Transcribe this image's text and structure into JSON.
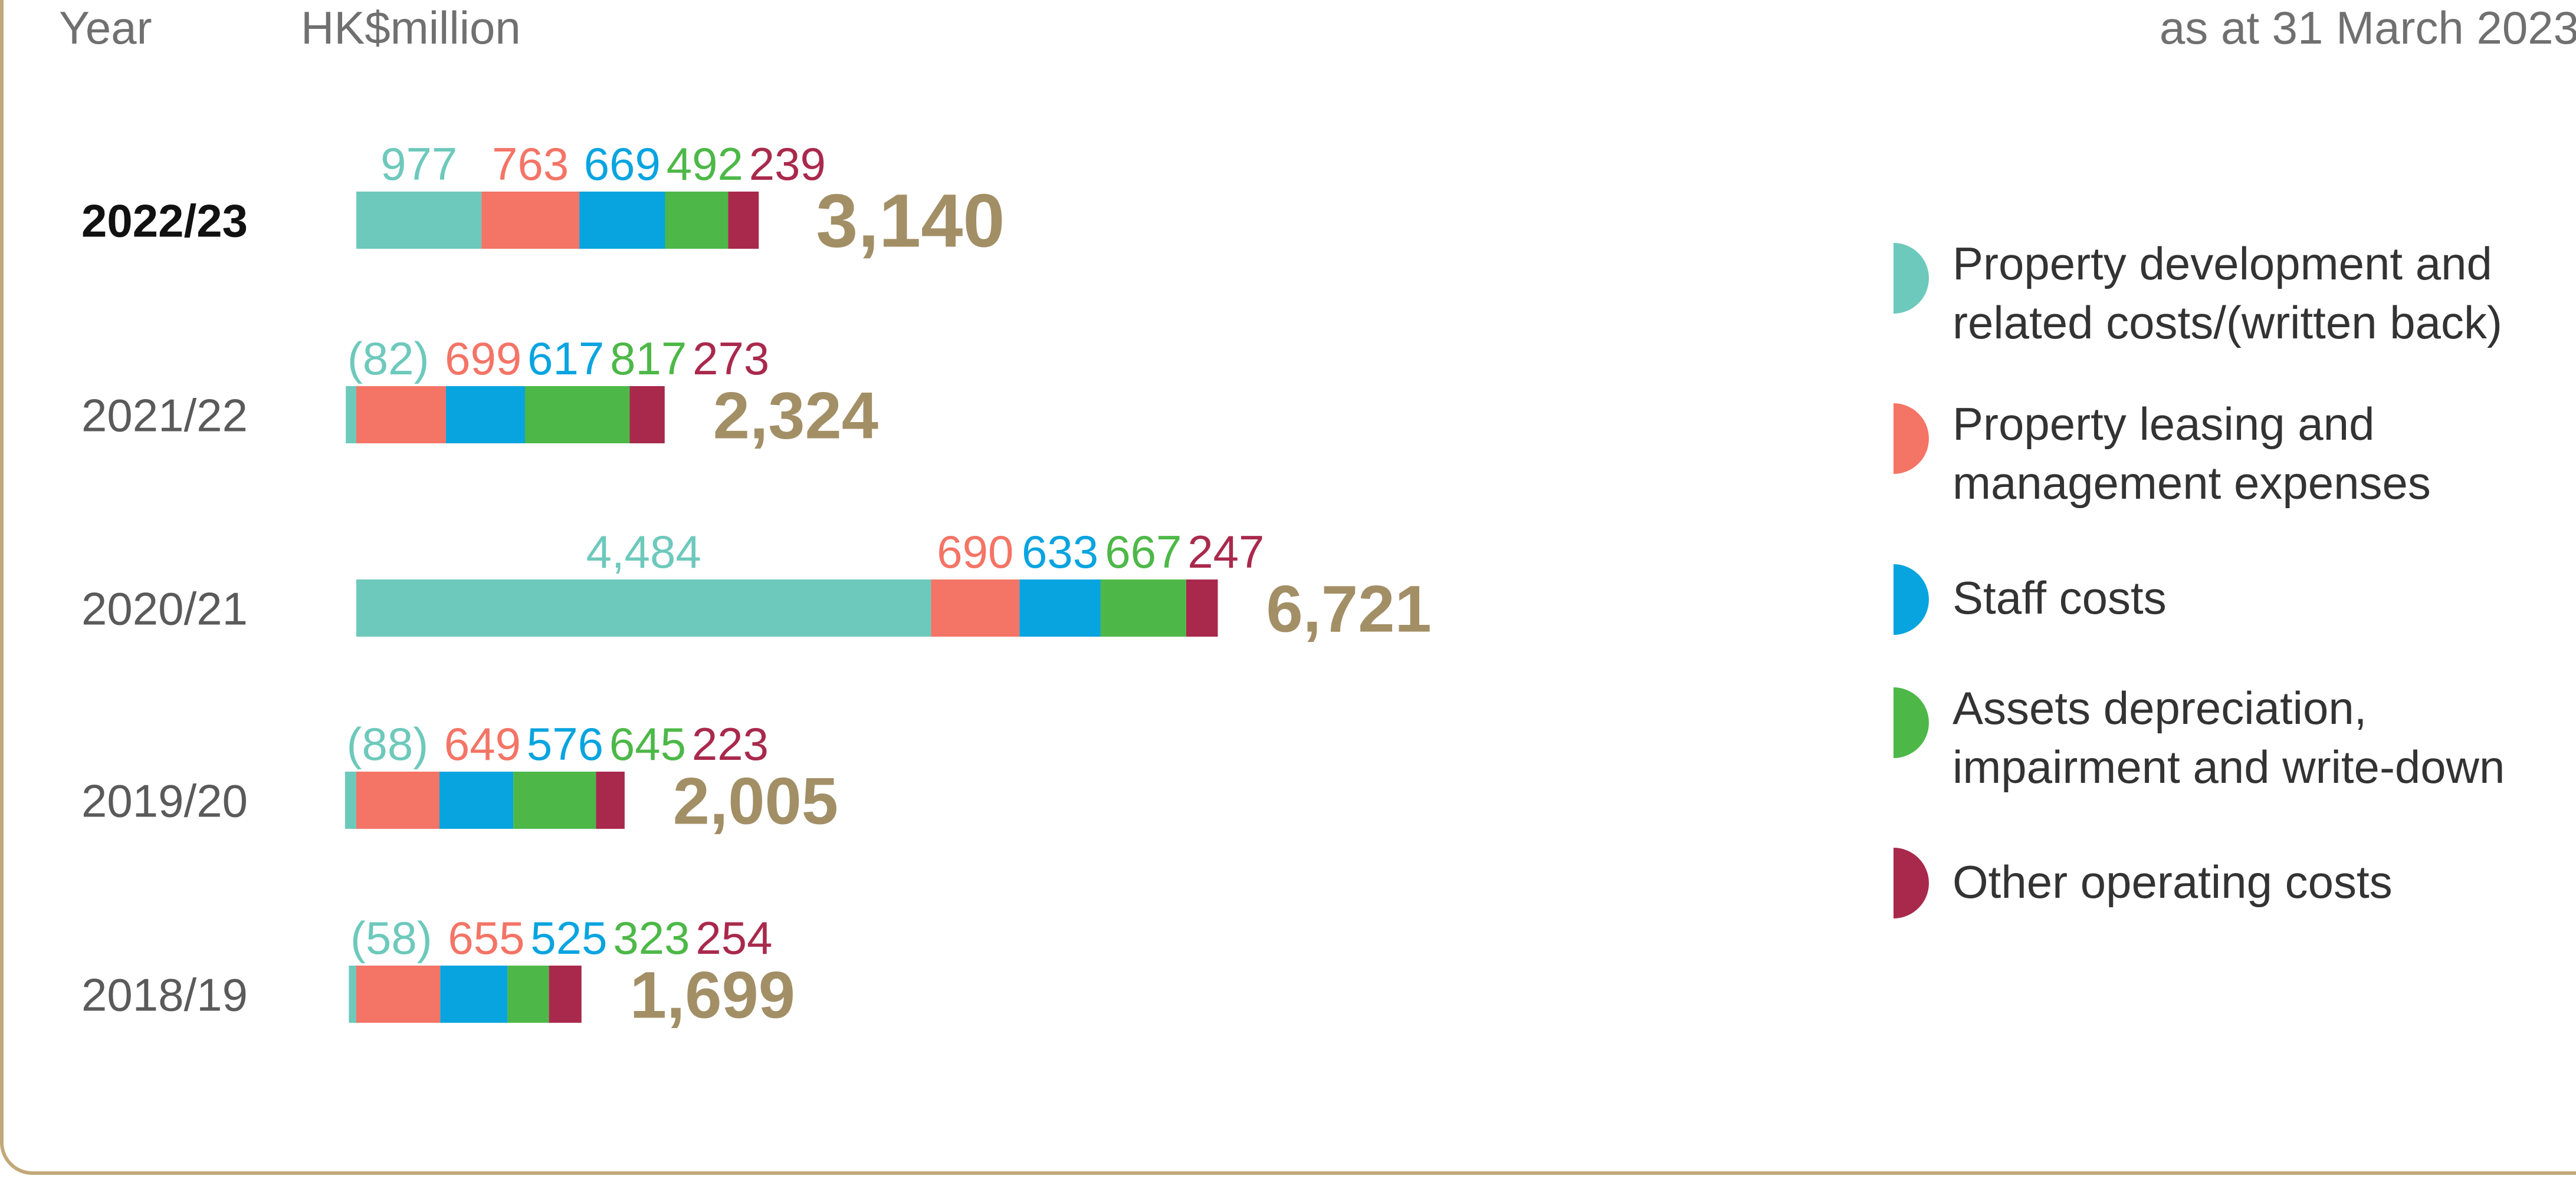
{
  "header": {
    "year_label": "Year",
    "unit_label": "HK$million",
    "as_at": "as at 31 March 2023"
  },
  "colors": {
    "accent": "#a38f66",
    "frame": "#c2a878",
    "series": [
      "#6dc9bc",
      "#f47466",
      "#08a4e0",
      "#4db848",
      "#a9294c"
    ]
  },
  "legend": [
    {
      "label": "Property development and\nrelated costs/(written back)",
      "icon": "half-circle-icon"
    },
    {
      "label": "Property leasing and\nmanagement expenses",
      "icon": "half-circle-icon"
    },
    {
      "label": "Staff costs",
      "icon": "half-circle-icon"
    },
    {
      "label": "Assets depreciation,\nimpairment and write-down",
      "icon": "half-circle-icon"
    },
    {
      "label": "Other operating costs",
      "icon": "half-circle-icon"
    }
  ],
  "chart_data": {
    "type": "bar",
    "orientation": "horizontal",
    "stacked": true,
    "categories": [
      "2022/23",
      "2021/22",
      "2020/21",
      "2019/20",
      "2018/19"
    ],
    "highlight_category": "2022/23",
    "series": [
      {
        "name": "Property development and related costs/(written back)",
        "values": [
          977,
          -82,
          4484,
          -88,
          -58
        ],
        "labels": [
          "977",
          "(82)",
          "4,484",
          "(88)",
          "(58)"
        ]
      },
      {
        "name": "Property leasing and management expenses",
        "values": [
          763,
          699,
          690,
          649,
          655
        ],
        "labels": [
          "763",
          "699",
          "690",
          "649",
          "655"
        ]
      },
      {
        "name": "Staff costs",
        "values": [
          669,
          617,
          633,
          576,
          525
        ],
        "labels": [
          "669",
          "617",
          "633",
          "576",
          "525"
        ]
      },
      {
        "name": "Assets depreciation, impairment and write-down",
        "values": [
          492,
          817,
          667,
          645,
          323
        ],
        "labels": [
          "492",
          "817",
          "667",
          "645",
          "323"
        ]
      },
      {
        "name": "Other operating costs",
        "values": [
          239,
          273,
          247,
          223,
          254
        ],
        "labels": [
          "239",
          "273",
          "247",
          "223",
          "254"
        ]
      }
    ],
    "totals": [
      "3,140",
      "2,324",
      "6,721",
      "2,005",
      "1,699"
    ],
    "legend_position": "right",
    "grid": false
  }
}
